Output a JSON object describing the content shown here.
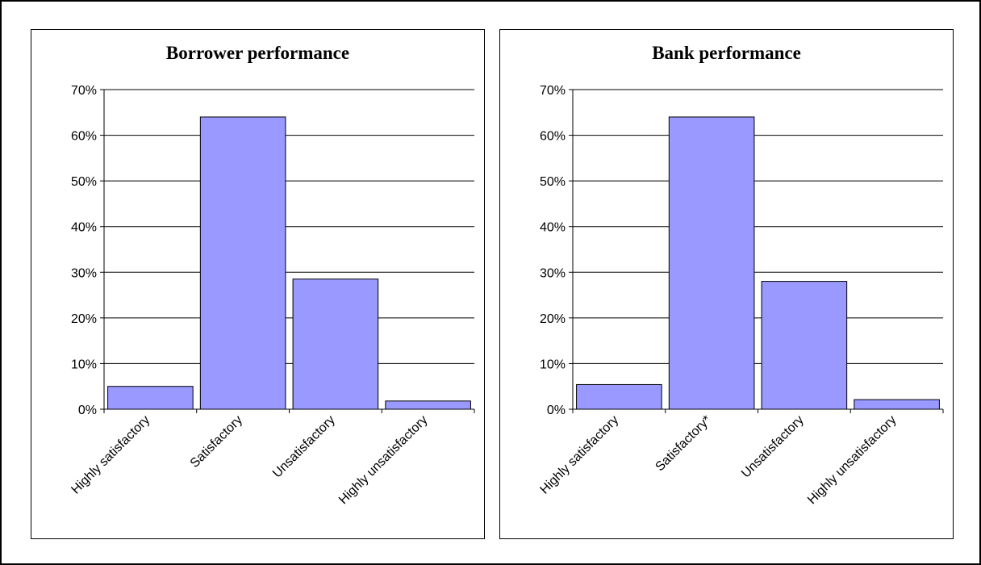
{
  "chart_data": [
    {
      "type": "bar",
      "title": "Borrower performance",
      "xlabel": "",
      "ylabel": "",
      "categories": [
        "Highly satisfactory",
        "Satisfactory",
        "Unsatisfactory",
        "Highly unsatisfactory"
      ],
      "values": [
        0.05,
        0.64,
        0.285,
        0.018
      ],
      "ylim": [
        0,
        0.7
      ],
      "yticks": [
        "0%",
        "10%",
        "20%",
        "30%",
        "40%",
        "50%",
        "60%",
        "70%"
      ],
      "grid": true,
      "legend": "none",
      "bar_color": "#9999ff"
    },
    {
      "type": "bar",
      "title": "Bank performance",
      "xlabel": "",
      "ylabel": "",
      "categories": [
        "Highly satisfactory",
        "Satisfactory*",
        "Unsatisfactory",
        "Highly unsatisfactory"
      ],
      "values": [
        0.054,
        0.64,
        0.28,
        0.021
      ],
      "ylim": [
        0,
        0.7
      ],
      "yticks": [
        "0%",
        "10%",
        "20%",
        "30%",
        "40%",
        "50%",
        "60%",
        "70%"
      ],
      "grid": true,
      "legend": "none",
      "bar_color": "#9999ff"
    }
  ]
}
